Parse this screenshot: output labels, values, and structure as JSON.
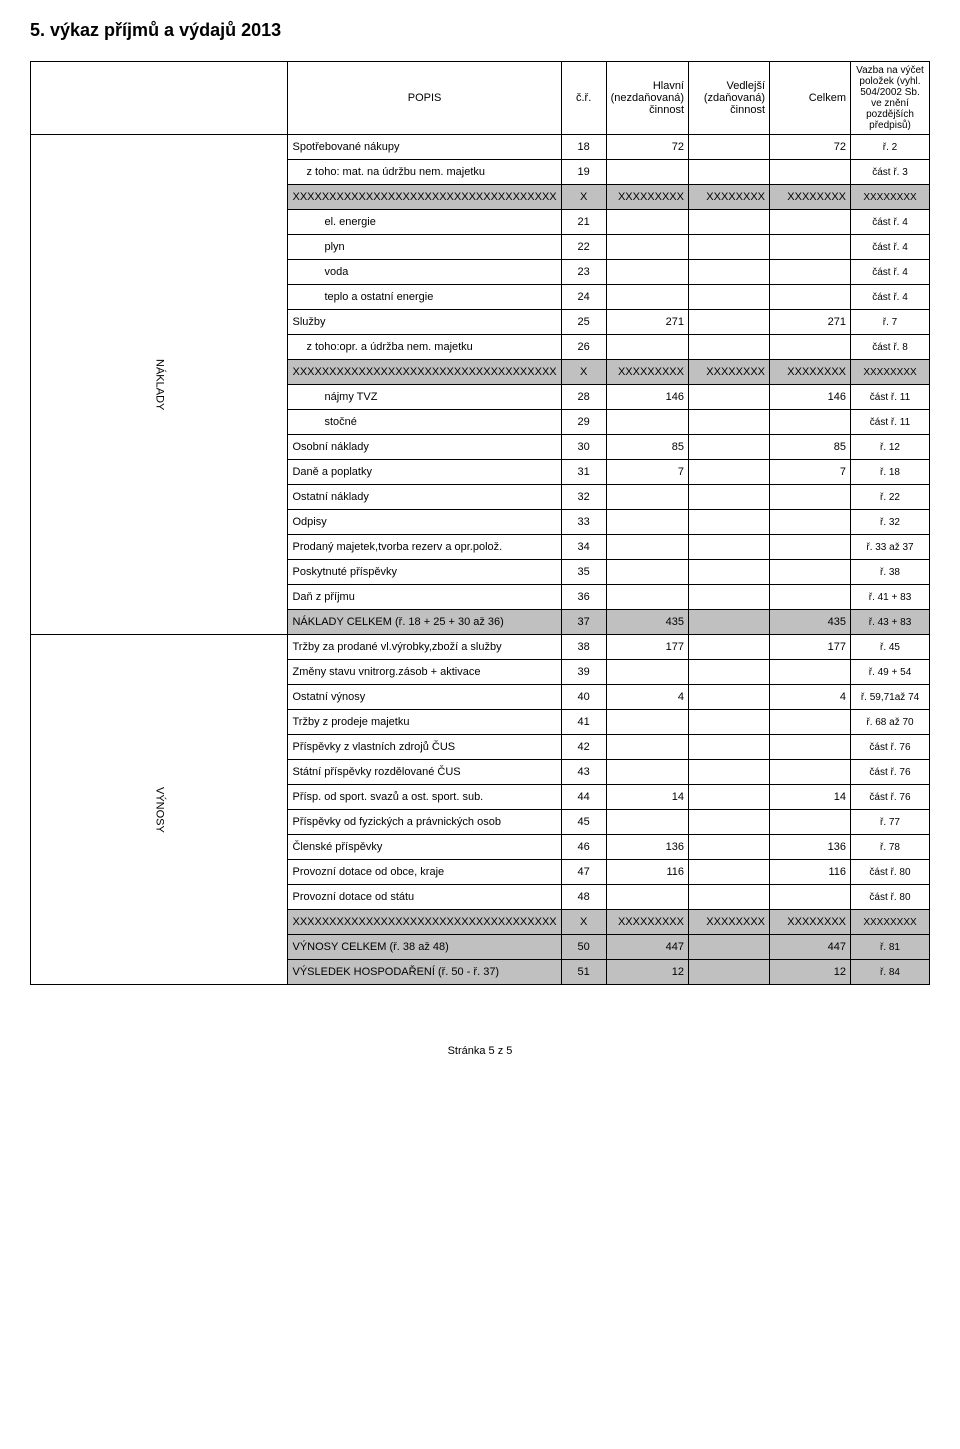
{
  "title": "5. výkaz příjmů a výdajů 2013",
  "header": {
    "popis": "POPIS",
    "cr": "č.ř.",
    "hlavni": "Hlavní (nezdaňovaná) činnost",
    "vedlejsi": "Vedlejší (zdaňovaná) činnost",
    "celkem": "Celkem",
    "vazba": "Vazba na výčet položek (vyhl. 504/2002 Sb. ve znění pozdějších předpisů)"
  },
  "side": {
    "naklady": "NÁKLADY",
    "vynosy": "VÝNOSY"
  },
  "rows": [
    {
      "label": "Spotřebované nákupy",
      "cr": "18",
      "c1": "72",
      "c2": "",
      "c3": "72",
      "ref": "ř. 2",
      "indent": 0
    },
    {
      "label": "z toho: mat. na údržbu nem. majetku",
      "cr": "19",
      "c1": "",
      "c2": "",
      "c3": "",
      "ref": "část ř. 3",
      "indent": 1
    },
    {
      "label": "XXXXXXXXXXXXXXXXXXXXXXXXXXXXXXXXXXXX",
      "cr": "X",
      "c1": "XXXXXXXXX",
      "c2": "XXXXXXXX",
      "c3": "XXXXXXXX",
      "ref": "XXXXXXXX",
      "indent": 0,
      "shaded": true
    },
    {
      "label": "el. energie",
      "cr": "21",
      "c1": "",
      "c2": "",
      "c3": "",
      "ref": "část ř. 4",
      "indent": 2
    },
    {
      "label": "plyn",
      "cr": "22",
      "c1": "",
      "c2": "",
      "c3": "",
      "ref": "část ř. 4",
      "indent": 2
    },
    {
      "label": "voda",
      "cr": "23",
      "c1": "",
      "c2": "",
      "c3": "",
      "ref": "část ř. 4",
      "indent": 2
    },
    {
      "label": "teplo a ostatní energie",
      "cr": "24",
      "c1": "",
      "c2": "",
      "c3": "",
      "ref": "část ř. 4",
      "indent": 2
    },
    {
      "label": "Služby",
      "cr": "25",
      "c1": "271",
      "c2": "",
      "c3": "271",
      "ref": "ř. 7",
      "indent": 0
    },
    {
      "label": "z toho:opr. a údržba nem. majetku",
      "cr": "26",
      "c1": "",
      "c2": "",
      "c3": "",
      "ref": "část ř. 8",
      "indent": 1
    },
    {
      "label": "XXXXXXXXXXXXXXXXXXXXXXXXXXXXXXXXXXXX",
      "cr": "X",
      "c1": "XXXXXXXXX",
      "c2": "XXXXXXXX",
      "c3": "XXXXXXXX",
      "ref": "XXXXXXXX",
      "indent": 0,
      "shaded": true
    },
    {
      "label": "nájmy TVZ",
      "cr": "28",
      "c1": "146",
      "c2": "",
      "c3": "146",
      "ref": "část ř. 11",
      "indent": 2
    },
    {
      "label": "stočné",
      "cr": "29",
      "c1": "",
      "c2": "",
      "c3": "",
      "ref": "část ř. 11",
      "indent": 2
    },
    {
      "label": "Osobní náklady",
      "cr": "30",
      "c1": "85",
      "c2": "",
      "c3": "85",
      "ref": "ř. 12",
      "indent": 0
    },
    {
      "label": "Daně a poplatky",
      "cr": "31",
      "c1": "7",
      "c2": "",
      "c3": "7",
      "ref": "ř. 18",
      "indent": 0
    },
    {
      "label": "Ostatní náklady",
      "cr": "32",
      "c1": "",
      "c2": "",
      "c3": "",
      "ref": "ř. 22",
      "indent": 0
    },
    {
      "label": "Odpisy",
      "cr": "33",
      "c1": "",
      "c2": "",
      "c3": "",
      "ref": "ř. 32",
      "indent": 0
    },
    {
      "label": "Prodaný majetek,tvorba rezerv a opr.polož.",
      "cr": "34",
      "c1": "",
      "c2": "",
      "c3": "",
      "ref": "ř. 33 až 37",
      "indent": 0
    },
    {
      "label": "Poskytnuté příspěvky",
      "cr": "35",
      "c1": "",
      "c2": "",
      "c3": "",
      "ref": "ř. 38",
      "indent": 0
    },
    {
      "label": "Daň z příjmu",
      "cr": "36",
      "c1": "",
      "c2": "",
      "c3": "",
      "ref": "ř. 41 + 83",
      "indent": 0
    },
    {
      "label": "NÁKLADY CELKEM                        (ř. 18 + 25 + 30 až 36)",
      "cr": "37",
      "c1": "435",
      "c2": "",
      "c3": "435",
      "ref": "ř. 43 + 83",
      "indent": 0,
      "shaded": true
    }
  ],
  "rows2": [
    {
      "label": "Tržby za prodané vl.výrobky,zboží a služby",
      "cr": "38",
      "c1": "177",
      "c2": "",
      "c3": "177",
      "ref": "ř. 45",
      "indent": 0
    },
    {
      "label": "Změny stavu vnitrorg.zásob + aktivace",
      "cr": "39",
      "c1": "",
      "c2": "",
      "c3": "",
      "ref": "ř. 49 + 54",
      "indent": 0
    },
    {
      "label": "Ostatní výnosy",
      "cr": "40",
      "c1": "4",
      "c2": "",
      "c3": "4",
      "ref": "ř. 59,71až 74",
      "indent": 0
    },
    {
      "label": "Tržby z prodeje majetku",
      "cr": "41",
      "c1": "",
      "c2": "",
      "c3": "",
      "ref": "ř. 68 až 70",
      "indent": 0
    },
    {
      "label": "Příspěvky z vlastních zdrojů ČUS",
      "cr": "42",
      "c1": "",
      "c2": "",
      "c3": "",
      "ref": "část ř. 76",
      "indent": 0
    },
    {
      "label": "Státní příspěvky rozdělované ČUS",
      "cr": "43",
      "c1": "",
      "c2": "",
      "c3": "",
      "ref": "část ř. 76",
      "indent": 0
    },
    {
      "label": "Přísp. od sport. svazů a ost. sport. sub.",
      "cr": "44",
      "c1": "14",
      "c2": "",
      "c3": "14",
      "ref": "část ř. 76",
      "indent": 0
    },
    {
      "label": "Příspěvky od fyzických a právnických osob",
      "cr": "45",
      "c1": "",
      "c2": "",
      "c3": "",
      "ref": "ř. 77",
      "indent": 0
    },
    {
      "label": "Členské příspěvky",
      "cr": "46",
      "c1": "136",
      "c2": "",
      "c3": "136",
      "ref": "ř. 78",
      "indent": 0
    },
    {
      "label": "Provozní dotace od obce, kraje",
      "cr": "47",
      "c1": "116",
      "c2": "",
      "c3": "116",
      "ref": "část ř. 80",
      "indent": 0
    },
    {
      "label": "Provozní dotace od státu",
      "cr": "48",
      "c1": "",
      "c2": "",
      "c3": "",
      "ref": "část ř. 80",
      "indent": 0
    },
    {
      "label": "XXXXXXXXXXXXXXXXXXXXXXXXXXXXXXXXXXXX",
      "cr": "X",
      "c1": "XXXXXXXXX",
      "c2": "XXXXXXXX",
      "c3": "XXXXXXXX",
      "ref": "XXXXXXXX",
      "indent": 0,
      "shaded": true
    },
    {
      "label": "VÝNOSY CELKEM (ř. 38 až 48)",
      "cr": "50",
      "c1": "447",
      "c2": "",
      "c3": "447",
      "ref": "ř. 81",
      "indent": 0,
      "shaded": true
    },
    {
      "label": "VÝSLEDEK HOSPODAŘENÍ (ř. 50 - ř. 37)",
      "cr": "51",
      "c1": "12",
      "c2": "",
      "c3": "12",
      "ref": "ř. 84",
      "indent": 0,
      "shaded": true
    }
  ],
  "footer": "Stránka 5 z 5"
}
